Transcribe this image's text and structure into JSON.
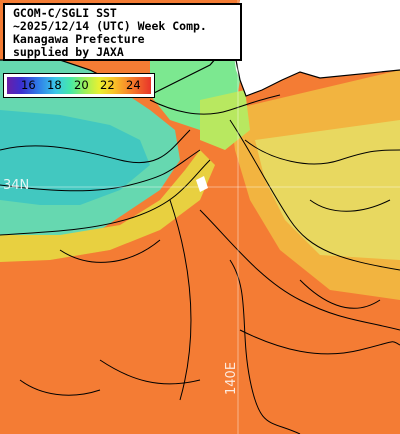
{
  "title": {
    "line1": "GCOM-C/SGLI SST",
    "line2": "~2025/12/14 (UTC) Week Comp.",
    "line3": "Kanagawa Prefecture",
    "line4": "supplied by JAXA"
  },
  "colorbar": {
    "labels": [
      "16",
      "18",
      "20",
      "22",
      "24"
    ]
  },
  "grid_labels": {
    "lat": "34N",
    "lon": "140E"
  },
  "colors": {
    "land": "#ffffff",
    "coast_line": "#000000",
    "warm_sea": "#f58a3a",
    "cool_sea": "#3fd8a8",
    "accent_red": "#e8342a"
  }
}
